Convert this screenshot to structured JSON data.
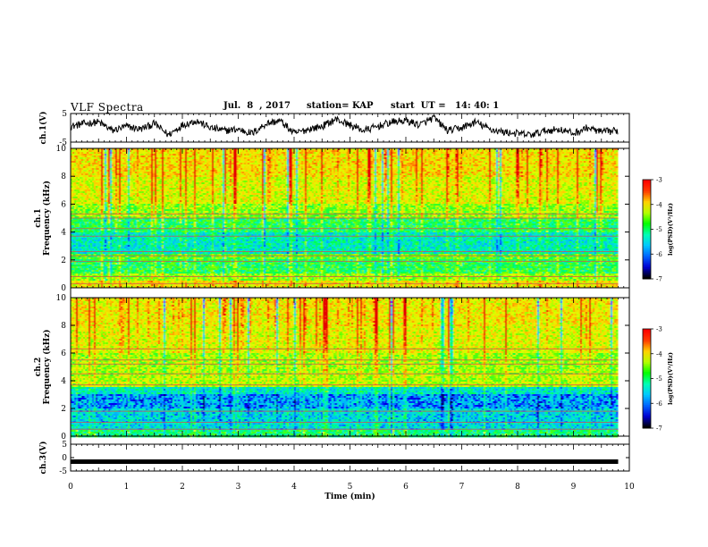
{
  "header": {
    "title": "VLF Spectra",
    "date": "Jul.  8  , 2017",
    "station": "station= KAP",
    "start": "start  UT =   14: 40: 1"
  },
  "colors": {
    "spectrogram_ramp": [
      "#00005a",
      "#0000ff",
      "#00b4ff",
      "#00f0c8",
      "#00ff50",
      "#64ff00",
      "#dcff00",
      "#ffd200",
      "#ff6400",
      "#e60000"
    ],
    "colorbar_ramp": [
      "#ff0000",
      "#ff3c00",
      "#ffd200",
      "#b4ff00",
      "#00ff00",
      "#00ffb4",
      "#00c8ff",
      "#0064ff",
      "#0000d2",
      "#000000"
    ]
  },
  "chart_data": [
    {
      "type": "line",
      "name": "ch1-waveform",
      "ylabel": "ch.1(V)",
      "ylim": [
        -5,
        5
      ],
      "yticks": [
        "5",
        "-5"
      ],
      "xlim": [
        0,
        10
      ],
      "x_end": 9.8,
      "series": [
        {
          "x": [
            0,
            0.25,
            0.5,
            0.75,
            1,
            1.25,
            1.5,
            1.75,
            2,
            2.25,
            2.5,
            2.75,
            3,
            3.25,
            3.5,
            3.75,
            4,
            4.25,
            4.5,
            4.75,
            5,
            5.25,
            5.5,
            5.75,
            6,
            6.25,
            6.5,
            6.75,
            7,
            7.25,
            7.5,
            7.75,
            8,
            8.25,
            8.5,
            8.75,
            9,
            9.25,
            9.5,
            9.8
          ],
          "y": [
            0.5,
            1.5,
            2,
            -1,
            0.5,
            -0.5,
            1.5,
            -2.5,
            1,
            2.5,
            0,
            -1,
            -0.5,
            -2,
            1.5,
            2.5,
            -2,
            -0.5,
            0.5,
            3,
            1,
            -1,
            0.5,
            2,
            2.5,
            1,
            3.5,
            -1,
            0,
            2,
            -0.5,
            -1.5,
            -2,
            -2.5,
            -1,
            -0.5,
            -2,
            0,
            -1.5,
            -1
          ]
        }
      ]
    },
    {
      "type": "heatmap",
      "name": "ch1-spectrogram",
      "ylabel": "ch.1\nFrequency (kHz)",
      "ylim": [
        0,
        10
      ],
      "yticks": [
        "0",
        "2",
        "4",
        "6",
        "8",
        "10"
      ],
      "xlim": [
        0,
        10
      ],
      "x_end": 9.8,
      "colorbar": {
        "label": "log(PSD)(V²/Hz)",
        "range": [
          -7,
          -3
        ],
        "ticks": [
          "-3",
          "-4",
          "-5",
          "-6",
          "-7"
        ]
      },
      "bands": [
        {
          "f": [
            0.0,
            0.5
          ],
          "level": 0.72
        },
        {
          "f": [
            0.5,
            1.0
          ],
          "level": 0.58
        },
        {
          "f": [
            1.0,
            2.0
          ],
          "level": 0.46
        },
        {
          "f": [
            2.0,
            2.5
          ],
          "level": 0.52
        },
        {
          "f": [
            2.5,
            4.0
          ],
          "level": 0.34
        },
        {
          "f": [
            4.0,
            5.0
          ],
          "level": 0.45
        },
        {
          "f": [
            5.0,
            6.0
          ],
          "level": 0.58
        },
        {
          "f": [
            6.0,
            8.0
          ],
          "level": 0.68
        },
        {
          "f": [
            8.0,
            10.0
          ],
          "level": 0.74
        }
      ],
      "lines_khz": [
        0.3,
        0.8,
        1.9,
        2.3,
        2.6,
        3.7,
        4.25,
        5.0,
        5.3
      ]
    },
    {
      "type": "heatmap",
      "name": "ch2-spectrogram",
      "ylabel": "ch.2\nFrequency (kHz)",
      "ylim": [
        0,
        10
      ],
      "yticks": [
        "0",
        "2",
        "4",
        "6",
        "8",
        "10"
      ],
      "xlim": [
        0,
        10
      ],
      "x_end": 9.8,
      "colorbar": {
        "label": "log(PSD)(V²/Hz)",
        "range": [
          -7,
          -3
        ],
        "ticks": [
          "-3",
          "-4",
          "-5",
          "-6",
          "-7"
        ]
      },
      "bands": [
        {
          "f": [
            0.0,
            0.4
          ],
          "level": 0.42
        },
        {
          "f": [
            0.4,
            1.0
          ],
          "level": 0.3
        },
        {
          "f": [
            1.0,
            2.0
          ],
          "level": 0.28
        },
        {
          "f": [
            2.0,
            3.0
          ],
          "level": 0.2
        },
        {
          "f": [
            3.0,
            3.5
          ],
          "level": 0.33
        },
        {
          "f": [
            3.5,
            4.5
          ],
          "level": 0.62
        },
        {
          "f": [
            4.5,
            6.0
          ],
          "level": 0.6
        },
        {
          "f": [
            6.0,
            8.0
          ],
          "level": 0.68
        },
        {
          "f": [
            8.0,
            10.0
          ],
          "level": 0.72
        }
      ],
      "lines_khz": [
        0.5,
        1.0,
        1.8,
        3.7,
        4.5,
        5.2,
        5.5,
        6.3
      ]
    },
    {
      "type": "line",
      "name": "ch3-waveform",
      "ylabel": "ch.3(V)",
      "ylim": [
        -5,
        5
      ],
      "yticks": [
        "5",
        "0",
        "-5"
      ],
      "xlim": [
        0,
        10
      ],
      "xlabel": "Time  (min)",
      "xticks": [
        "0",
        "1",
        "2",
        "3",
        "4",
        "5",
        "6",
        "7",
        "8",
        "9",
        "10"
      ],
      "x_end": 9.8,
      "series": [
        {
          "x": [
            0,
            9.8
          ],
          "y": [
            -1.5,
            -1.5
          ]
        }
      ]
    }
  ]
}
